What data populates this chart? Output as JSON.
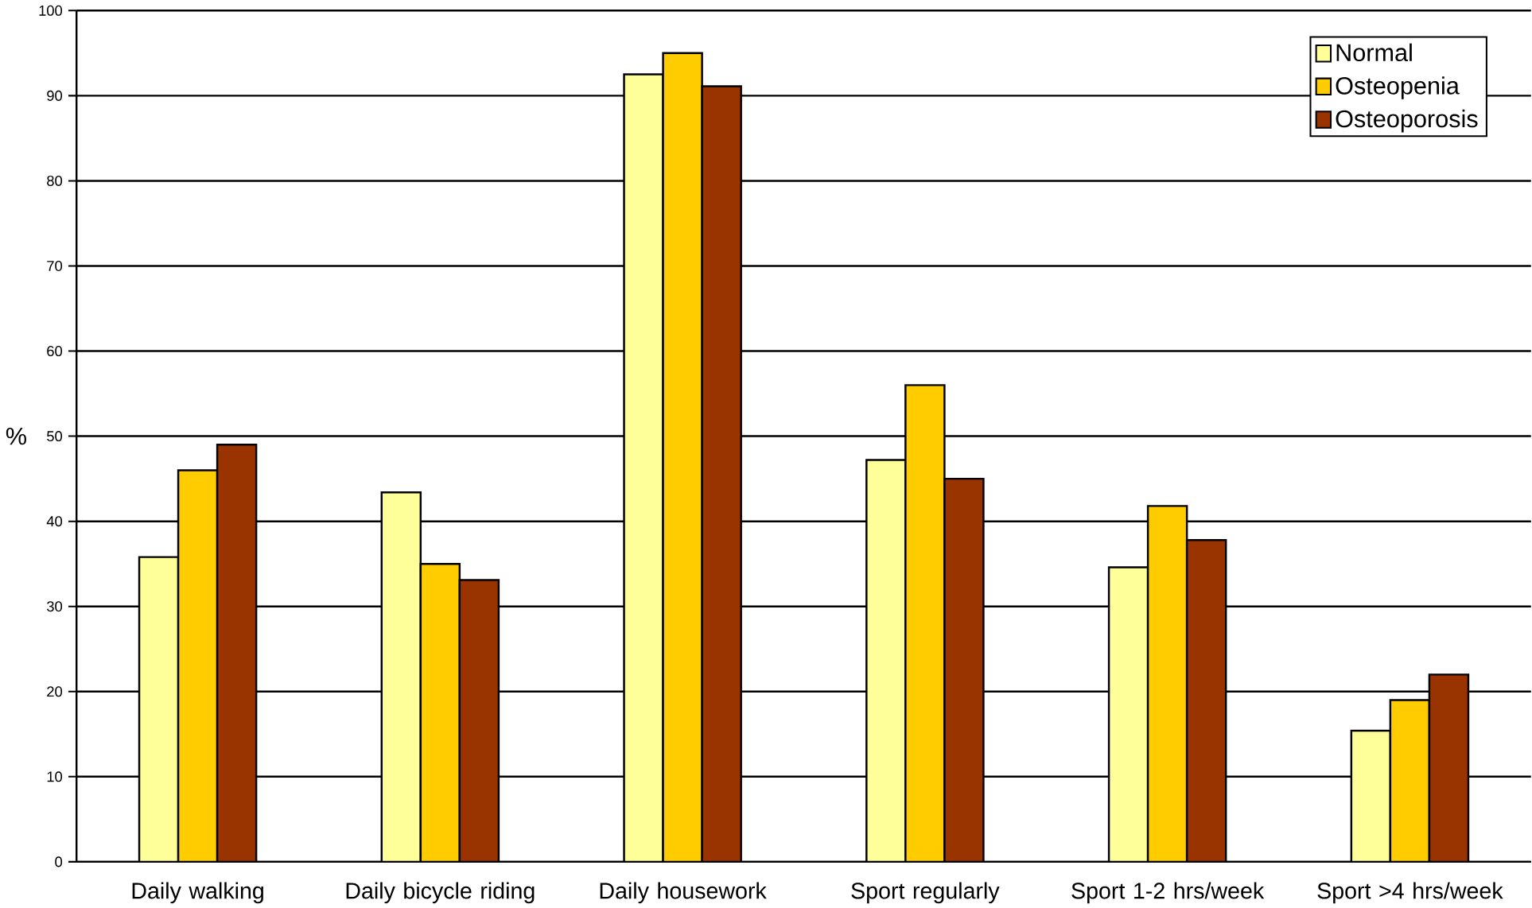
{
  "chart_data": {
    "type": "bar",
    "ylabel": "%",
    "categories": [
      "Daily walking",
      "Daily bicycle riding",
      "Daily housework",
      "Sport regularly",
      "Sport 1-2 hrs/week",
      "Sport >4 hrs/week"
    ],
    "series": [
      {
        "name": "Normal",
        "color": "#ffff99",
        "values": [
          35.8,
          43.4,
          92.5,
          47.2,
          34.6,
          15.4
        ]
      },
      {
        "name": "Osteopenia",
        "color": "#ffcc00",
        "values": [
          46,
          35,
          95,
          56,
          41.8,
          19
        ]
      },
      {
        "name": "Osteoporosis",
        "color": "#993300",
        "values": [
          49,
          33.1,
          91.1,
          45,
          37.8,
          22
        ]
      }
    ],
    "ylim": [
      0,
      100
    ],
    "yticks": [
      0,
      10,
      20,
      30,
      40,
      50,
      60,
      70,
      80,
      90,
      100
    ],
    "grid": "y",
    "legend": "top right"
  }
}
